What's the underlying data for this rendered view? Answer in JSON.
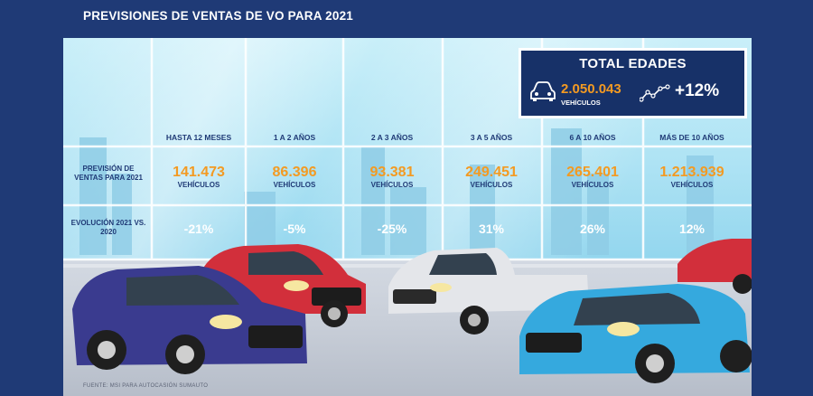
{
  "title": "PREVISIONES DE VENTAS DE VO PARA 2021",
  "total": {
    "heading": "TOTAL EDADES",
    "value": "2.050.043",
    "unit": "VEHÍCULOS",
    "change": "+12%",
    "car_icon": "car-icon",
    "trend_icon": "trend-icon"
  },
  "row_labels": {
    "forecast": "PREVISIÓN DE VENTAS PARA 2021",
    "evolution": "EVOLUCIÓN 2021 VS. 2020"
  },
  "unit_label": "VEHÍCULOS",
  "chart_data": {
    "type": "table",
    "title": "PREVISIONES DE VENTAS DE VO PARA 2021",
    "columns": [
      "HASTA 12 MESES",
      "1 A 2 AÑOS",
      "2 A 3 AÑOS",
      "3 A 5 AÑOS",
      "6 A 10 AÑOS",
      "MÁS DE 10 AÑOS"
    ],
    "forecast_labels": [
      "141.473",
      "86.396",
      "93.381",
      "249.451",
      "265.401",
      "1.213.939"
    ],
    "forecast_values": [
      141473,
      86396,
      93381,
      249451,
      265401,
      1213939
    ],
    "evolution_labels": [
      "-21%",
      "-5%",
      "-25%",
      "31%",
      "26%",
      "12%"
    ],
    "evolution_values": [
      -21,
      -5,
      -25,
      31,
      26,
      12
    ],
    "total": {
      "value": 2050043,
      "change_pct": 12
    }
  },
  "colors": {
    "navy": "#1f3a76",
    "orange": "#f39a22",
    "sky": "#aee3f4"
  },
  "source": "FUENTE: MSI PARA AUTOCASIÓN SUMAUTO"
}
